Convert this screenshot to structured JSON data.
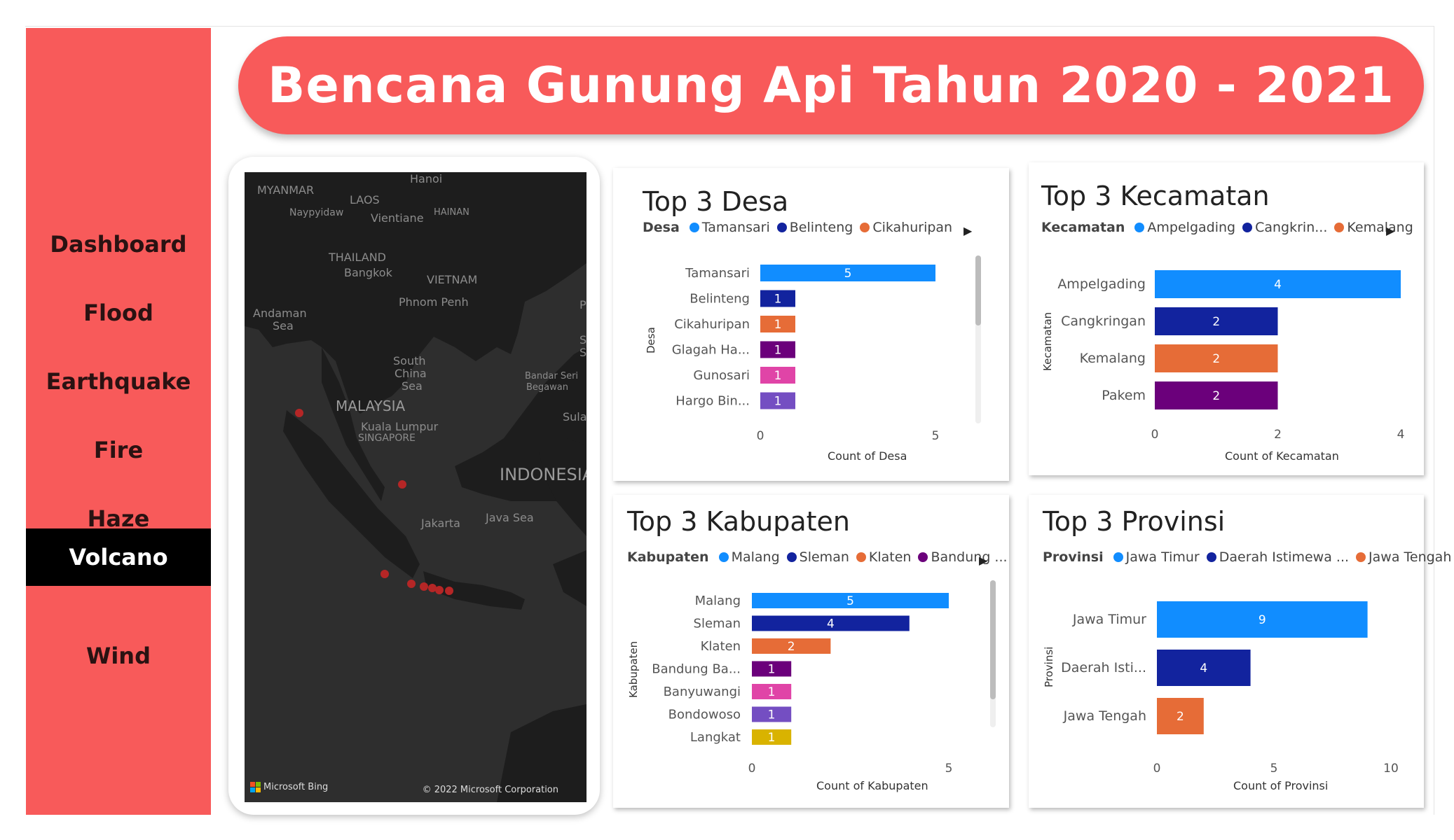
{
  "header": {
    "title": "Bencana Gunung Api Tahun 2020 - 2021"
  },
  "sidebar": {
    "items": [
      {
        "label": "Dashboard",
        "active": false
      },
      {
        "label": "Flood",
        "active": false
      },
      {
        "label": "Earthquake",
        "active": false
      },
      {
        "label": "Fire",
        "active": false
      },
      {
        "label": "Haze",
        "active": false
      },
      {
        "label": "Volcano",
        "active": true
      },
      {
        "label": "Wind",
        "active": false
      }
    ]
  },
  "map": {
    "labels": {
      "myanmar": "MYANMAR",
      "laos": "LAOS",
      "hanoi": "Hanoi",
      "naypyidaw": "Naypyidaw",
      "vientiane": "Vientiane",
      "hainan": "HAINAN",
      "thailand": "THAILAND",
      "bangkok": "Bangkok",
      "vietnam": "VIETNAM",
      "phnom_penh": "Phnom Penh",
      "andaman1": "Andaman",
      "andaman2": "Sea",
      "scs1": "South",
      "scs2": "China",
      "scs3": "Sea",
      "bandar1": "Bandar Seri",
      "bandar2": "Begawan",
      "malaysia": "MALAYSIA",
      "kl": "Kuala Lumpur",
      "singapore": "SINGAPORE",
      "sula": "Sula",
      "indonesia": "INDONESIA",
      "jakarta": "Jakarta",
      "java_sea": "Java Sea",
      "p": "P",
      "s1": "S",
      "s2": "S"
    },
    "attribution": "Microsoft Bing",
    "copyright": "© 2022 Microsoft Corporation",
    "marker_color": "#b52626"
  },
  "colors": {
    "c1": "#118dff",
    "c2": "#12239e",
    "c3": "#e66c37",
    "c4": "#6b007b",
    "c5": "#e044a7",
    "c6": "#744ec2",
    "c7": "#d9b300"
  },
  "charts": {
    "desa": {
      "title": "Top 3 Desa",
      "legend_title": "Desa",
      "legend": [
        "Tamansari",
        "Belinteng",
        "Cikahuripan"
      ],
      "y_title": "Desa",
      "x_title": "Count of Desa"
    },
    "kecamatan": {
      "title": "Top 3 Kecamatan",
      "legend_title": "Kecamatan",
      "legend": [
        "Ampelgading",
        "Cangkrin...",
        "Kemalang"
      ],
      "y_title": "Kecamatan",
      "x_title": "Count of Kecamatan"
    },
    "kabupaten": {
      "title": "Top 3 Kabupaten",
      "legend_title": "Kabupaten",
      "legend": [
        "Malang",
        "Sleman",
        "Klaten",
        "Bandung ..."
      ],
      "y_title": "Kabupaten",
      "x_title": "Count of Kabupaten"
    },
    "provinsi": {
      "title": "Top 3 Provinsi",
      "legend_title": "Provinsi",
      "legend": [
        "Jawa Timur",
        "Daerah Istimewa ...",
        "Jawa Tengah"
      ],
      "y_title": "Provinsi",
      "x_title": "Count of Provinsi"
    }
  },
  "chart_data": [
    {
      "type": "bar",
      "title": "Top 3 Desa",
      "xlabel": "Count of Desa",
      "ylabel": "Desa",
      "categories": [
        "Tamansari",
        "Belinteng",
        "Cikahuripan",
        "Glagah Ha...",
        "Gunosari",
        "Hargo Bin..."
      ],
      "values": [
        5,
        1,
        1,
        1,
        1,
        1
      ],
      "xlim": [
        0,
        5
      ],
      "xticks": [
        "0",
        "5"
      ]
    },
    {
      "type": "bar",
      "title": "Top 3 Kecamatan",
      "xlabel": "Count of Kecamatan",
      "ylabel": "Kecamatan",
      "categories": [
        "Ampelgading",
        "Cangkringan",
        "Kemalang",
        "Pakem"
      ],
      "values": [
        4,
        2,
        2,
        2
      ],
      "xlim": [
        0,
        4
      ],
      "xticks": [
        "0",
        "2",
        "4"
      ]
    },
    {
      "type": "bar",
      "title": "Top 3 Kabupaten",
      "xlabel": "Count of Kabupaten",
      "ylabel": "Kabupaten",
      "categories": [
        "Malang",
        "Sleman",
        "Klaten",
        "Bandung Ba...",
        "Banyuwangi",
        "Bondowoso",
        "Langkat"
      ],
      "values": [
        5,
        4,
        2,
        1,
        1,
        1,
        1
      ],
      "xlim": [
        0,
        5
      ],
      "xticks": [
        "0",
        "5"
      ]
    },
    {
      "type": "bar",
      "title": "Top 3 Provinsi",
      "xlabel": "Count of Provinsi",
      "ylabel": "Provinsi",
      "categories": [
        "Jawa Timur",
        "Daerah Isti...",
        "Jawa Tengah"
      ],
      "values": [
        9,
        4,
        2
      ],
      "xlim": [
        0,
        10
      ],
      "xticks": [
        "0",
        "5",
        "10"
      ]
    }
  ]
}
